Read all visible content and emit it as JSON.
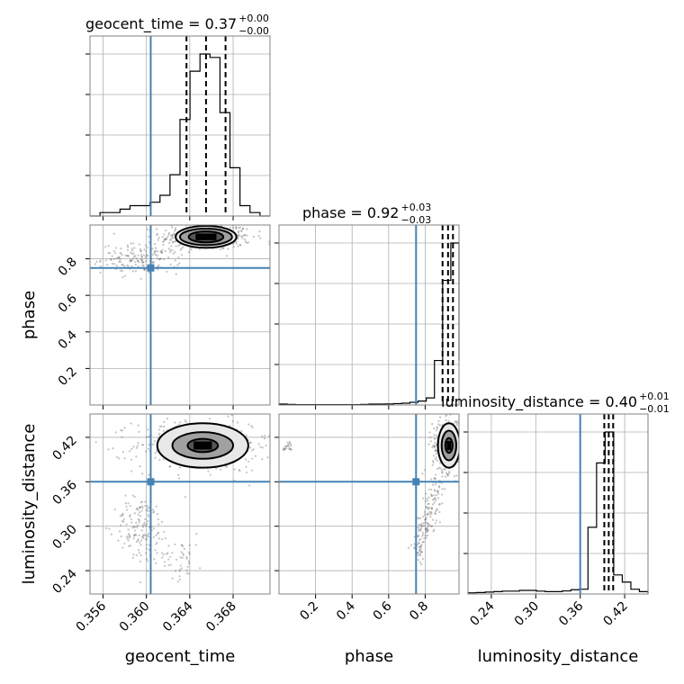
{
  "chart_data": {
    "type": "corner",
    "parameters": [
      "geocent_time",
      "phase",
      "luminosity_distance"
    ],
    "truth": {
      "geocent_time": 0.3604,
      "phase": 0.75,
      "luminosity_distance": 0.36
    },
    "titles": [
      {
        "param": "geocent_time",
        "main": "geocent_time = 0.37",
        "plus": "+0.00",
        "minus": "−0.00"
      },
      {
        "param": "phase",
        "main": "phase = 0.92",
        "plus": "+0.03",
        "minus": "−0.03"
      },
      {
        "param": "luminosity_distance",
        "main": "luminosity_distance = 0.40",
        "plus": "+0.01",
        "minus": "−0.01"
      }
    ],
    "axes": {
      "geocent_time": {
        "label": "geocent_time",
        "range": [
          0.3548,
          0.3714
        ],
        "ticks": [
          0.356,
          0.36,
          0.364,
          0.368
        ],
        "tick_labels": [
          "0.356",
          "0.360",
          "0.364",
          "0.368"
        ]
      },
      "phase": {
        "label": "phase",
        "range": [
          0.0,
          0.985
        ],
        "ticks": [
          0.2,
          0.4,
          0.6,
          0.8
        ],
        "tick_labels": [
          "0.2",
          "0.4",
          "0.6",
          "0.8"
        ]
      },
      "luminosity_distance": {
        "label": "luminosity_distance",
        "range": [
          0.2085,
          0.4515
        ],
        "ticks": [
          0.24,
          0.3,
          0.36,
          0.42
        ],
        "tick_labels": [
          "0.24",
          "0.30",
          "0.36",
          "0.42"
        ]
      }
    },
    "histograms": [
      {
        "param": "geocent_time",
        "bins_min": 0.3548,
        "bins_max": 0.3714,
        "counts": [
          0,
          1,
          1,
          2,
          3,
          3,
          4,
          6,
          12,
          28,
          42,
          47,
          46,
          30,
          14,
          3,
          1,
          0
        ],
        "quantiles": [
          0.3637,
          0.3655,
          0.3673
        ]
      },
      {
        "param": "phase",
        "bins_min": 0.0,
        "bins_max": 0.985,
        "counts": [
          0.5,
          0.3,
          0.2,
          0.2,
          0.2,
          0.2,
          0.2,
          0.2,
          0.2,
          0.2,
          0.3,
          0.5,
          0.5,
          0.6,
          0.8,
          1,
          1.5,
          2.2,
          4,
          25,
          70,
          91
        ],
        "extra_right_level": 25,
        "quantiles": [
          0.895,
          0.925,
          0.952
        ]
      },
      {
        "param": "luminosity_distance",
        "bins_min": 0.2085,
        "bins_max": 0.4515,
        "counts": [
          0.5,
          0.6,
          0.8,
          1,
          1.2,
          1.2,
          1.5,
          1.5,
          1.2,
          1,
          1,
          1.3,
          1.8,
          2,
          28,
          55,
          68,
          8,
          5,
          2,
          1
        ],
        "quantiles": [
          0.3925,
          0.3985,
          0.4045
        ]
      }
    ],
    "contours": [
      {
        "x": "geocent_time",
        "y": "phase",
        "center": [
          0.3655,
          0.92
        ],
        "widths": [
          0.0028,
          0.0024,
          0.0016
        ],
        "heights": [
          0.06,
          0.045,
          0.03
        ]
      },
      {
        "x": "geocent_time",
        "y": "luminosity_distance",
        "center": [
          0.3652,
          0.409
        ],
        "widths": [
          0.0042,
          0.0028,
          0.0014
        ],
        "heights": [
          0.03,
          0.018,
          0.009
        ]
      },
      {
        "x": "phase",
        "y": "luminosity_distance",
        "center": [
          0.93,
          0.409
        ],
        "widths": [
          0.06,
          0.04,
          0.02
        ],
        "heights": [
          0.03,
          0.02,
          0.01
        ]
      }
    ]
  }
}
